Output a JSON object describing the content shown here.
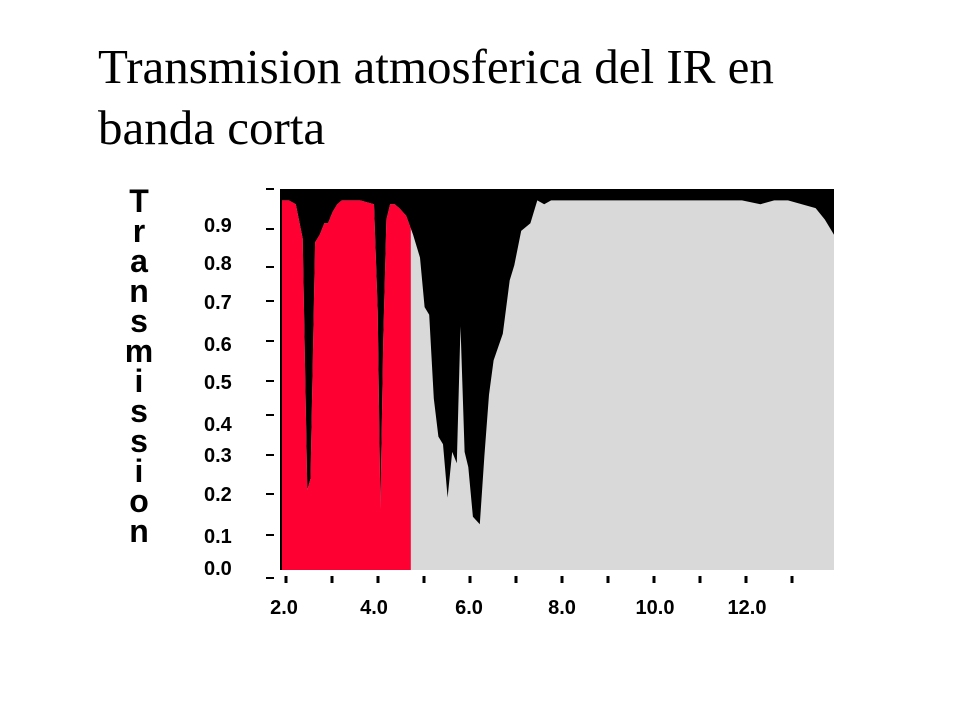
{
  "slide": {
    "title": "Transmision atmosferica del IR en banda corta"
  },
  "colors": {
    "transmission_fill": "#d9d9d9",
    "absorption_fill": "#000000",
    "highlight_band": "#ff0033",
    "axis": "#000000"
  },
  "chart_data": {
    "type": "area",
    "title": "",
    "xlabel": "",
    "ylabel": "Transmission",
    "xlim": [
      2.0,
      14.0
    ],
    "ylim": [
      0.0,
      1.0
    ],
    "x_tick_labels": [
      "2.0",
      "4.0",
      "6.0",
      "8.0",
      "10.0",
      "12.0"
    ],
    "y_tick_labels": [
      "0.0",
      "0.1",
      "0.2",
      "0.3",
      "0.4",
      "0.5",
      "0.6",
      "0.7",
      "0.8",
      "0.9"
    ],
    "grid": false,
    "highlight_band": {
      "x_start": 2.0,
      "x_end": 4.8
    },
    "series": [
      {
        "x": [
          2.0,
          2.15,
          2.3,
          2.45,
          2.55,
          2.62,
          2.72,
          2.82,
          2.92,
          3.0,
          3.1,
          3.2,
          3.3,
          3.45,
          3.7,
          4.0,
          4.08,
          4.14,
          4.2,
          4.27,
          4.35,
          4.45,
          4.55,
          4.7,
          4.85,
          5.0,
          5.1,
          5.2,
          5.3,
          5.4,
          5.5,
          5.6,
          5.7,
          5.8,
          5.88,
          5.97,
          6.05,
          6.15,
          6.3,
          6.4,
          6.5,
          6.6,
          6.8,
          6.95,
          7.05,
          7.2,
          7.4,
          7.55,
          7.7,
          7.85,
          8.0,
          8.3,
          8.7,
          9.2,
          10.0,
          11.0,
          12.0,
          12.4,
          12.7,
          13.0,
          13.3,
          13.6,
          13.8,
          14.0
        ],
        "y": [
          0.97,
          0.97,
          0.96,
          0.87,
          0.21,
          0.24,
          0.86,
          0.88,
          0.91,
          0.91,
          0.94,
          0.96,
          0.97,
          0.97,
          0.97,
          0.96,
          0.68,
          0.16,
          0.6,
          0.92,
          0.96,
          0.96,
          0.95,
          0.93,
          0.88,
          0.82,
          0.69,
          0.67,
          0.45,
          0.35,
          0.33,
          0.19,
          0.31,
          0.28,
          0.64,
          0.31,
          0.27,
          0.14,
          0.12,
          0.3,
          0.46,
          0.55,
          0.62,
          0.76,
          0.8,
          0.89,
          0.91,
          0.97,
          0.96,
          0.97,
          0.97,
          0.97,
          0.97,
          0.97,
          0.97,
          0.97,
          0.97,
          0.96,
          0.97,
          0.97,
          0.96,
          0.95,
          0.92,
          0.88
        ]
      }
    ]
  }
}
